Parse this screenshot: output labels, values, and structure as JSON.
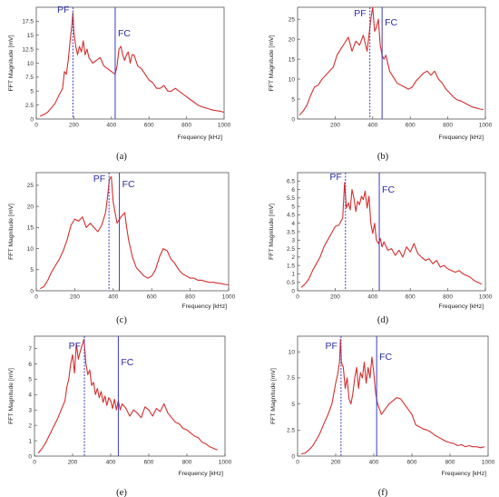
{
  "chart_data": [
    {
      "type": "line",
      "caption": "(a)",
      "xlabel": "Frequency [kHz]",
      "ylabel": "FFT Magnitude [mV]",
      "xlim": [
        0,
        1000
      ],
      "ylim": [
        0,
        20
      ],
      "xticks": [
        "0",
        "200",
        "400",
        "600",
        "800",
        "1000"
      ],
      "yticks": [
        "0",
        "2.5",
        "5",
        "7.5",
        "10",
        "12.5",
        "15",
        "17.5"
      ],
      "ytick_values": [
        0,
        2.5,
        5,
        7.5,
        10,
        12.5,
        15,
        17.5
      ],
      "markers": [
        {
          "label": "PF",
          "x": 195
        },
        {
          "label": "FC",
          "x": 420
        }
      ],
      "series": [
        {
          "color": "#d62d2d",
          "x": [
            20,
            40,
            60,
            80,
            100,
            120,
            140,
            150,
            160,
            170,
            180,
            190,
            195,
            200,
            210,
            220,
            230,
            240,
            250,
            260,
            270,
            280,
            300,
            320,
            340,
            360,
            380,
            400,
            420,
            430,
            440,
            450,
            460,
            470,
            480,
            490,
            500,
            510,
            520,
            540,
            560,
            580,
            600,
            620,
            640,
            660,
            680,
            700,
            720,
            740,
            760,
            780,
            800,
            820,
            840,
            860,
            880,
            900,
            920,
            940,
            960,
            980,
            1000
          ],
          "y": [
            0.5,
            0.8,
            1.2,
            2.0,
            2.8,
            4.2,
            5.5,
            8.5,
            8.0,
            10.5,
            14.0,
            17.0,
            19.0,
            15.5,
            13.0,
            11.5,
            13.0,
            12.0,
            14.0,
            11.5,
            12.5,
            11.0,
            10.0,
            10.5,
            11.0,
            9.5,
            9.0,
            8.5,
            8.0,
            9.5,
            12.5,
            13.0,
            11.5,
            10.5,
            11.5,
            12.0,
            10.0,
            11.5,
            11.5,
            9.5,
            9.0,
            8.0,
            7.0,
            6.5,
            5.5,
            5.5,
            6.0,
            5.0,
            5.0,
            5.5,
            5.0,
            4.5,
            4.0,
            3.5,
            3.0,
            2.5,
            2.2,
            2.0,
            1.8,
            1.6,
            1.5,
            1.4,
            1.2
          ]
        }
      ]
    },
    {
      "type": "line",
      "caption": "(b)",
      "xlabel": "Frequency [kHz]",
      "ylabel": "FFT Magnitude [mV]",
      "xlim": [
        0,
        1000
      ],
      "ylim": [
        0,
        28
      ],
      "xticks": [
        "200",
        "400",
        "600",
        "800",
        "1000"
      ],
      "yticks": [
        "0",
        "5",
        "10",
        "15",
        "20",
        "25"
      ],
      "ytick_values": [
        0,
        5,
        10,
        15,
        20,
        25
      ],
      "markers": [
        {
          "label": "PF",
          "x": 385
        },
        {
          "label": "FC",
          "x": 450
        }
      ],
      "series": [
        {
          "color": "#d62d2d",
          "x": [
            10,
            30,
            50,
            70,
            90,
            110,
            130,
            150,
            170,
            190,
            210,
            230,
            250,
            270,
            290,
            310,
            330,
            350,
            370,
            380,
            390,
            400,
            410,
            420,
            430,
            440,
            450,
            460,
            470,
            490,
            510,
            530,
            550,
            570,
            590,
            610,
            630,
            650,
            670,
            690,
            710,
            730,
            750,
            770,
            790,
            810,
            830,
            850,
            870,
            890,
            910,
            930,
            950,
            970,
            990
          ],
          "y": [
            1.0,
            2.0,
            3.5,
            6.0,
            8.0,
            8.5,
            10.0,
            11.0,
            12.0,
            13.0,
            16.0,
            17.5,
            19.0,
            20.5,
            17.0,
            19.5,
            18.5,
            21.0,
            17.0,
            21.0,
            25.0,
            28.0,
            22.0,
            23.0,
            25.0,
            18.5,
            16.0,
            15.0,
            16.0,
            12.0,
            10.5,
            9.0,
            8.5,
            8.0,
            7.5,
            8.0,
            9.5,
            10.5,
            11.5,
            12.0,
            11.0,
            12.0,
            10.0,
            9.0,
            7.5,
            6.5,
            5.5,
            4.8,
            4.5,
            4.0,
            3.5,
            3.0,
            2.8,
            2.5,
            2.4
          ]
        }
      ]
    },
    {
      "type": "line",
      "caption": "(c)",
      "xlabel": "Frequency [kHz]",
      "ylabel": "FFT Magnitude [mV]",
      "xlim": [
        0,
        1000
      ],
      "ylim": [
        0,
        28
      ],
      "xticks": [
        "0",
        "200",
        "400",
        "600",
        "800",
        "1000"
      ],
      "yticks": [
        "0",
        "5",
        "10",
        "15",
        "20",
        "25"
      ],
      "ytick_values": [
        0,
        5,
        10,
        15,
        20,
        25
      ],
      "markers": [
        {
          "label": "PF",
          "x": 378
        },
        {
          "label": "FC",
          "x": 432
        }
      ],
      "series": [
        {
          "color": "#d62d2d",
          "x": [
            20,
            40,
            60,
            80,
            100,
            120,
            140,
            160,
            180,
            200,
            220,
            240,
            260,
            280,
            300,
            320,
            340,
            360,
            370,
            380,
            390,
            400,
            420,
            440,
            460,
            470,
            480,
            500,
            520,
            540,
            560,
            580,
            600,
            620,
            640,
            660,
            680,
            700,
            720,
            740,
            760,
            780,
            800,
            820,
            840,
            860,
            880,
            900,
            920,
            940,
            960,
            980,
            1000
          ],
          "y": [
            0.5,
            1.0,
            2.5,
            4.5,
            6.0,
            7.5,
            9.5,
            12.0,
            15.5,
            17.0,
            16.5,
            17.5,
            15.0,
            16.0,
            15.0,
            14.0,
            15.5,
            18.5,
            22.0,
            26.5,
            27.0,
            21.0,
            16.0,
            17.5,
            18.5,
            15.0,
            12.0,
            8.0,
            5.5,
            4.5,
            3.5,
            3.0,
            3.5,
            5.0,
            8.0,
            10.0,
            9.5,
            7.5,
            6.5,
            5.0,
            4.0,
            3.5,
            3.0,
            3.0,
            2.5,
            2.5,
            2.2,
            2.0,
            2.0,
            1.8,
            1.7,
            1.5,
            1.4
          ]
        }
      ]
    },
    {
      "type": "line",
      "caption": "(d)",
      "xlabel": "Frequency [kHz]",
      "ylabel": "FFT Magnitude [mV]",
      "xlim": [
        0,
        1000
      ],
      "ylim": [
        0,
        7
      ],
      "xticks": [
        "0",
        "200",
        "400",
        "600",
        "800",
        "1000"
      ],
      "yticks": [
        "0",
        "0.5",
        "1",
        "1.5",
        "2",
        "2.5",
        "3",
        "3.5",
        "4",
        "4.5",
        "5",
        "5.5",
        "6",
        "6.5"
      ],
      "ytick_values": [
        0,
        0.5,
        1,
        1.5,
        2,
        2.5,
        3,
        3.5,
        4,
        4.5,
        5,
        5.5,
        6,
        6.5
      ],
      "markers": [
        {
          "label": "PF",
          "x": 255
        },
        {
          "label": "FC",
          "x": 435
        }
      ],
      "series": [
        {
          "color": "#d62d2d",
          "x": [
            20,
            40,
            60,
            80,
            100,
            120,
            140,
            160,
            180,
            200,
            220,
            240,
            250,
            260,
            270,
            280,
            290,
            300,
            310,
            320,
            330,
            340,
            350,
            360,
            370,
            380,
            390,
            400,
            410,
            420,
            430,
            440,
            450,
            460,
            480,
            500,
            520,
            540,
            560,
            580,
            600,
            620,
            640,
            660,
            680,
            700,
            720,
            740,
            760,
            780,
            800,
            820,
            840,
            860,
            880,
            900,
            920,
            940,
            960,
            980
          ],
          "y": [
            0.2,
            0.4,
            0.7,
            1.2,
            1.6,
            2.0,
            2.6,
            3.0,
            3.4,
            3.8,
            3.9,
            4.3,
            6.4,
            4.9,
            5.2,
            4.8,
            6.0,
            5.5,
            4.7,
            5.3,
            5.1,
            5.6,
            5.4,
            5.9,
            4.9,
            5.6,
            4.0,
            3.4,
            4.0,
            3.0,
            2.8,
            3.1,
            2.6,
            2.9,
            2.4,
            2.5,
            2.1,
            2.4,
            2.0,
            2.6,
            2.3,
            2.8,
            2.2,
            2.0,
            1.8,
            1.9,
            1.6,
            1.8,
            1.4,
            1.5,
            1.3,
            1.2,
            1.1,
            1.2,
            1.0,
            0.9,
            0.8,
            0.6,
            0.5,
            0.4
          ]
        }
      ]
    },
    {
      "type": "line",
      "caption": "(e)",
      "xlabel": "Frequency [kHz]",
      "ylabel": "FFT Magnitude [mV]",
      "xlim": [
        0,
        1000
      ],
      "ylim": [
        0,
        7.8
      ],
      "xticks": [
        "0",
        "200",
        "400",
        "600",
        "800",
        "1000"
      ],
      "yticks": [
        "0",
        "1",
        "2",
        "3",
        "4",
        "5",
        "6",
        "7"
      ],
      "ytick_values": [
        0,
        1,
        2,
        3,
        4,
        5,
        6,
        7
      ],
      "markers": [
        {
          "label": "PF",
          "x": 262
        },
        {
          "label": "FC",
          "x": 440
        }
      ],
      "series": [
        {
          "color": "#d62d2d",
          "x": [
            20,
            40,
            60,
            80,
            100,
            120,
            140,
            160,
            170,
            180,
            190,
            200,
            210,
            220,
            230,
            240,
            250,
            260,
            270,
            280,
            290,
            300,
            310,
            320,
            330,
            340,
            350,
            360,
            370,
            380,
            390,
            400,
            410,
            420,
            430,
            440,
            450,
            460,
            480,
            500,
            520,
            540,
            560,
            580,
            600,
            620,
            640,
            660,
            680,
            700,
            720,
            740,
            760,
            780,
            800,
            820,
            840,
            860,
            880,
            900,
            920,
            940,
            960
          ],
          "y": [
            0.2,
            0.5,
            0.9,
            1.4,
            1.9,
            2.4,
            3.0,
            3.6,
            4.5,
            5.0,
            6.0,
            6.6,
            5.4,
            7.3,
            6.3,
            6.8,
            7.2,
            7.6,
            6.0,
            5.3,
            5.6,
            4.6,
            4.8,
            4.0,
            4.4,
            3.8,
            4.2,
            3.5,
            3.9,
            3.3,
            3.8,
            3.6,
            3.1,
            3.7,
            3.0,
            3.6,
            3.0,
            3.4,
            3.1,
            2.6,
            3.0,
            2.8,
            2.5,
            3.2,
            3.0,
            2.6,
            3.1,
            2.9,
            3.4,
            2.8,
            2.5,
            2.2,
            2.1,
            1.8,
            1.7,
            1.5,
            1.3,
            1.2,
            0.9,
            0.8,
            0.6,
            0.5,
            0.4
          ]
        }
      ]
    },
    {
      "type": "line",
      "caption": "(f)",
      "xlabel": "Frequency [kHz]",
      "ylabel": "FFT Magnitude [mV]",
      "xlim": [
        0,
        1000
      ],
      "ylim": [
        0,
        11.5
      ],
      "xticks": [
        "0",
        "200",
        "400",
        "600",
        "800",
        "1000"
      ],
      "yticks": [
        "0",
        "2.5",
        "5",
        "7.5",
        "10"
      ],
      "ytick_values": [
        0,
        2.5,
        5,
        7.5,
        10
      ],
      "markers": [
        {
          "label": "PF",
          "x": 228
        },
        {
          "label": "FC",
          "x": 415
        }
      ],
      "series": [
        {
          "color": "#d62d2d",
          "x": [
            20,
            40,
            60,
            80,
            100,
            120,
            140,
            160,
            180,
            200,
            210,
            220,
            225,
            230,
            240,
            250,
            260,
            270,
            280,
            290,
            300,
            310,
            320,
            330,
            340,
            350,
            360,
            370,
            380,
            390,
            400,
            410,
            420,
            430,
            440,
            460,
            480,
            500,
            520,
            540,
            560,
            580,
            600,
            620,
            640,
            660,
            680,
            700,
            720,
            740,
            760,
            780,
            800,
            820,
            840,
            860,
            880,
            900,
            920,
            940,
            960,
            980
          ],
          "y": [
            0.2,
            0.3,
            0.6,
            1.0,
            1.6,
            2.3,
            3.2,
            4.0,
            5.0,
            7.0,
            7.8,
            9.0,
            11.2,
            9.0,
            8.5,
            6.5,
            7.5,
            5.5,
            5.0,
            6.0,
            7.5,
            8.5,
            6.5,
            8.0,
            7.5,
            9.0,
            7.0,
            8.5,
            7.5,
            9.5,
            8.0,
            6.0,
            5.0,
            4.5,
            4.0,
            4.5,
            5.0,
            5.3,
            5.6,
            5.5,
            5.0,
            4.5,
            4.0,
            3.0,
            2.8,
            2.6,
            2.5,
            2.3,
            2.0,
            1.8,
            1.6,
            1.4,
            1.3,
            1.2,
            1.0,
            1.1,
            0.9,
            1.0,
            0.9,
            0.9,
            0.8,
            0.9
          ]
        }
      ]
    }
  ]
}
